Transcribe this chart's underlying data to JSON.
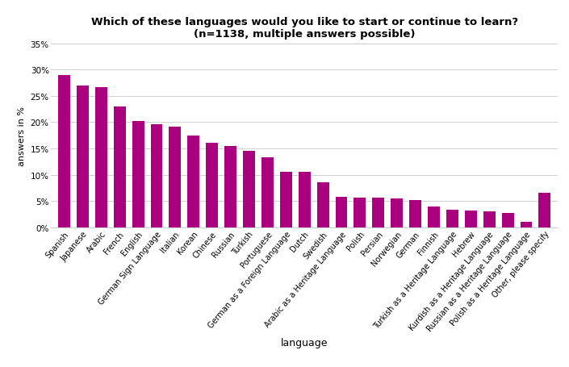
{
  "title": "Which of these languages would you like to start or continue to learn?\n(n=1138, multiple answers possible)",
  "xlabel": "language",
  "ylabel": "answers in %",
  "bar_color": "#aa007f",
  "categories": [
    "Spanish",
    "Japanese",
    "Arabic",
    "French",
    "English",
    "German Sign Language",
    "Italian",
    "Korean",
    "Chinese",
    "Russian",
    "Turkish",
    "Portuguese",
    "German as a Foreign Language",
    "Dutch",
    "Swedish",
    "Arabic as a Heritage Language",
    "Polish",
    "Persian",
    "Norwegian",
    "German",
    "Finnish",
    "Turkish as a Heritage Language",
    "Hebrew",
    "Kurdish as a Heritage Language",
    "Russian as a Heritage Language",
    "Polish as a Heritage Language",
    "Other, please specify"
  ],
  "values": [
    29.0,
    27.0,
    26.7,
    23.0,
    20.2,
    19.6,
    19.2,
    17.5,
    16.0,
    15.5,
    14.6,
    13.3,
    10.6,
    10.5,
    8.6,
    5.8,
    5.6,
    5.6,
    5.5,
    5.1,
    3.9,
    3.3,
    3.2,
    3.1,
    2.7,
    1.1,
    6.6
  ],
  "ylim": [
    0,
    35
  ],
  "yticks": [
    0,
    5,
    10,
    15,
    20,
    25,
    30,
    35
  ],
  "ytick_labels": [
    "0%",
    "5%",
    "10%",
    "15%",
    "20%",
    "25%",
    "30%",
    "35%"
  ],
  "title_fontsize": 9.5,
  "xlabel_fontsize": 9,
  "ylabel_fontsize": 8,
  "tick_fontsize": 7.5,
  "xtick_fontsize": 7,
  "background_color": "#ffffff",
  "grid_color": "#d0d0d0",
  "figwidth": 7.05,
  "figheight": 4.56,
  "dpi": 100
}
